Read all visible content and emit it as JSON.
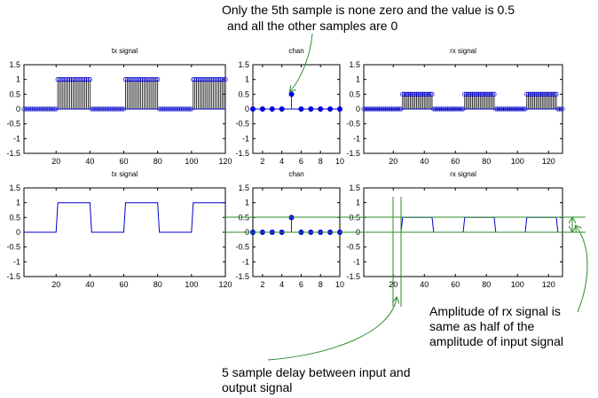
{
  "colors": {
    "signal": "#0000cc",
    "stem": "#000000",
    "marker_fill": "#0000ff",
    "marker_hollow": "#aaaaaa",
    "annotation": "#2e8b2e"
  },
  "annotations": {
    "top_line1": "Only the 5th sample is none zero and the value is 0.5",
    "top_line2": "and all the other samples are 0",
    "right_line1": "Amplitude of rx signal is",
    "right_line2": "same as half of the",
    "right_line3": "amplitude of input signal",
    "bottom_line1": "5 sample delay between input and",
    "bottom_line2": "output signal"
  },
  "chart_data": [
    {
      "panel": "top-left",
      "type": "stem",
      "title": "tx signal",
      "xlim": [
        1,
        120
      ],
      "ylim": [
        -1.5,
        1.5
      ],
      "xticks": [
        20,
        40,
        60,
        80,
        100,
        120
      ],
      "xtick_labels": [
        "20",
        "40",
        "60",
        "80",
        "100",
        "120"
      ],
      "yticks": [
        1.5,
        1,
        0.5,
        0,
        -0.5,
        -1,
        -1.5
      ],
      "ytick_labels": [
        "1.5",
        "1",
        "0.5",
        "0",
        "-0.5",
        "-1",
        "-1.5"
      ],
      "x_start": 1,
      "values": "square wave of period 40, amplitude 1, high at samples 21-40, 61-80, 101-120, zero elsewhere"
    },
    {
      "panel": "top-middle",
      "type": "stem",
      "title": "chan",
      "xlim": [
        1,
        10
      ],
      "ylim": [
        -1.5,
        1.5
      ],
      "xticks": [
        2,
        4,
        6,
        8,
        10
      ],
      "xtick_labels": [
        "2",
        "4",
        "6",
        "8",
        "10"
      ],
      "yticks": [
        1.5,
        1,
        0.5,
        0,
        -0.5,
        -1,
        -1.5
      ],
      "ytick_labels": [
        "1.5",
        "1",
        "0.5",
        "0",
        "-0.5",
        "-1",
        "-1.5"
      ],
      "x": [
        1,
        2,
        3,
        4,
        5,
        6,
        7,
        8,
        9,
        10
      ],
      "values": [
        0,
        0,
        0,
        0,
        0.5,
        0,
        0,
        0,
        0,
        0
      ]
    },
    {
      "panel": "top-right",
      "type": "stem",
      "title": "rx signal",
      "xlim": [
        1,
        129
      ],
      "ylim": [
        -1.5,
        1.5
      ],
      "xticks": [
        20,
        40,
        60,
        80,
        100,
        120
      ],
      "xtick_labels": [
        "20",
        "40",
        "60",
        "80",
        "100",
        "120"
      ],
      "yticks": [
        1.5,
        1,
        0.5,
        0,
        -0.5,
        -1,
        -1.5
      ],
      "ytick_labels": [
        "1.5",
        "1",
        "0.5",
        "0",
        "-0.5",
        "-1",
        "-1.5"
      ],
      "x_start": 1,
      "values": "square wave of amplitude 0.5, high at samples 26-45, 66-85, 106-125, zero elsewhere"
    },
    {
      "panel": "bottom-left",
      "type": "line",
      "title": "tx signal",
      "xlim": [
        1,
        120
      ],
      "ylim": [
        -1.5,
        1.5
      ],
      "xticks": [
        20,
        40,
        60,
        80,
        100,
        120
      ],
      "xtick_labels": [
        "20",
        "40",
        "60",
        "80",
        "100",
        "120"
      ],
      "yticks": [
        1.5,
        1,
        0.5,
        0,
        -0.5,
        -1,
        -1.5
      ],
      "ytick_labels": [
        "1.5",
        "1",
        "0.5",
        "0",
        "-0.5",
        "-1",
        "-1.5"
      ],
      "x_start": 1,
      "values": "same as top-left tx signal"
    },
    {
      "panel": "bottom-middle",
      "type": "stem",
      "title": "chan",
      "xlim": [
        1,
        10
      ],
      "ylim": [
        -1.5,
        1.5
      ],
      "xticks": [
        2,
        4,
        6,
        8,
        10
      ],
      "xtick_labels": [
        "2",
        "4",
        "6",
        "8",
        "10"
      ],
      "yticks": [
        1.5,
        1,
        0.5,
        0,
        -0.5,
        -1,
        -1.5
      ],
      "ytick_labels": [
        "1.5",
        "1",
        "0.5",
        "0",
        "-0.5",
        "-1",
        "-1.5"
      ],
      "x": [
        1,
        2,
        3,
        4,
        5,
        6,
        7,
        8,
        9,
        10
      ],
      "values": [
        0,
        0,
        0,
        0,
        0.5,
        0,
        0,
        0,
        0,
        0
      ]
    },
    {
      "panel": "bottom-right",
      "type": "line",
      "title": "rx signal",
      "xlim": [
        1,
        129
      ],
      "ylim": [
        -1.5,
        1.5
      ],
      "xticks": [
        20,
        40,
        60,
        80,
        100,
        120
      ],
      "xtick_labels": [
        "20",
        "40",
        "60",
        "80",
        "100",
        "120"
      ],
      "yticks": [
        1.5,
        1,
        0.5,
        0,
        -0.5,
        -1,
        -1.5
      ],
      "ytick_labels": [
        "1.5",
        "1",
        "0.5",
        "0",
        "-0.5",
        "-1",
        "-1.5"
      ],
      "x_start": 1,
      "values": "same as top-right rx signal"
    }
  ]
}
